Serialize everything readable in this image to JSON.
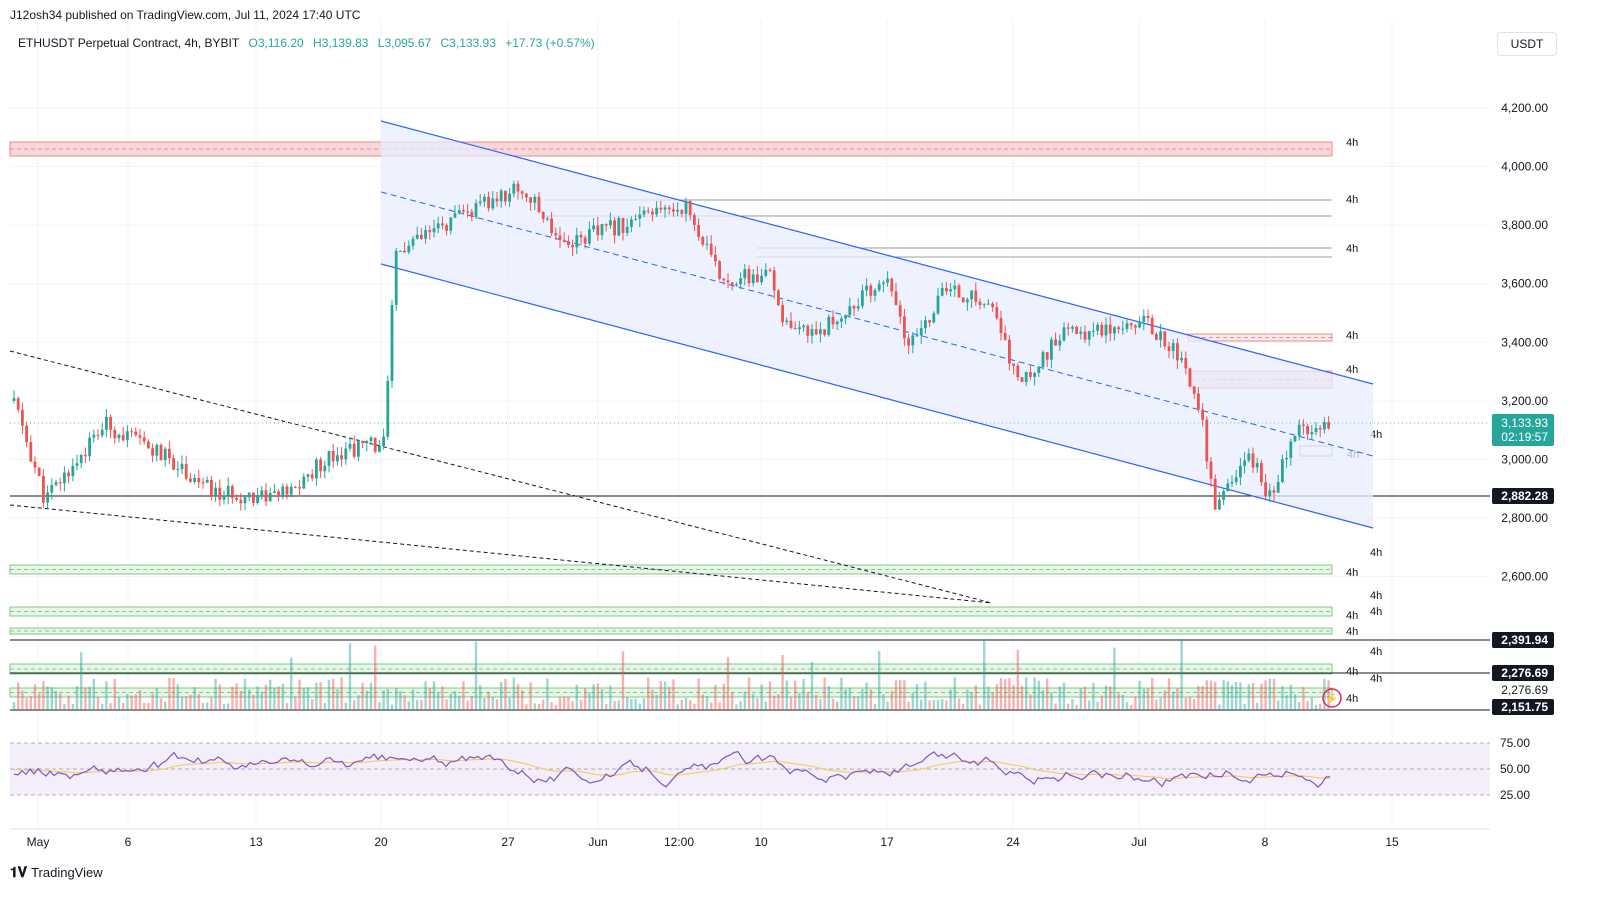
{
  "publisher": "J12osh34 published on TradingView.com, Jul 11, 2024 17:40 UTC",
  "symbol": {
    "name": "ETHUSDT Perpetual Contract, 4h, BYBIT",
    "open": "O3,116.20",
    "high": "H3,139.83",
    "low": "L3,095.67",
    "close": "C3,133.93",
    "change": "+17.73 (+0.57%)"
  },
  "currency": "USDT",
  "price_axis": [
    "4,200.00",
    "4,000.00",
    "3,800.00",
    "3,600.00",
    "3,400.00",
    "3,200.00",
    "3,000.00",
    "2,800.00",
    "2,600.00"
  ],
  "price_tags": {
    "current": "3,133.93",
    "countdown": "02:19:57",
    "support": "2,882.28",
    "level1": "2,391.94",
    "level2": "2,276.69",
    "level2b": "2,276.69",
    "level3": "2,151.75"
  },
  "timeframe_label": "4h",
  "rsi_axis": [
    "75.00",
    "50.00",
    "25.00"
  ],
  "time_axis": [
    "May",
    "6",
    "13",
    "20",
    "27",
    "Jun",
    "12:00",
    "10",
    "17",
    "24",
    "Jul",
    "8",
    "15"
  ],
  "brand": "TradingView",
  "colors": {
    "up": "#26a69a",
    "down": "#ef5350",
    "channel": "#2962ff",
    "rsi": "#7e57c2",
    "rsi_ma": "#f7c948"
  }
}
